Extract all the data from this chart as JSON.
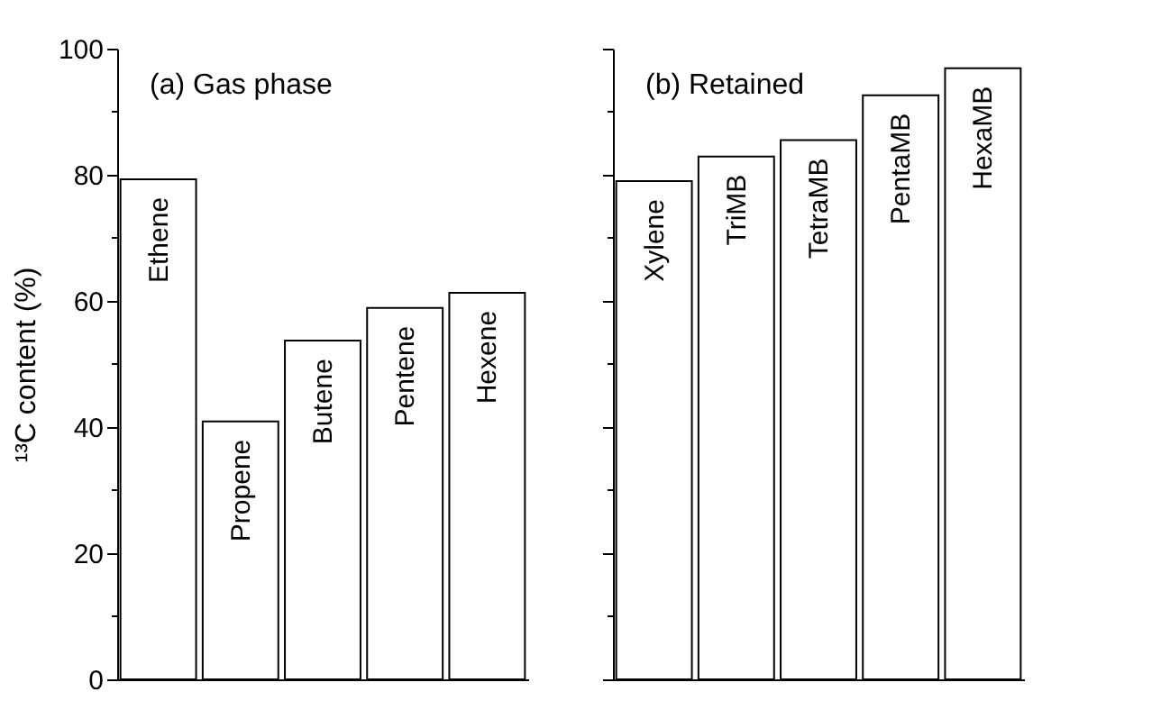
{
  "chart_data": [
    {
      "type": "bar",
      "title": "(a) Gas phase",
      "ylabel": "¹³C content (%)",
      "categories": [
        "Ethene",
        "Propene",
        "Butene",
        "Pentene",
        "Hexene"
      ],
      "values": [
        79.3,
        40.9,
        53.7,
        58.9,
        61.3
      ],
      "color": "#ffffff",
      "ylim": [
        0,
        100
      ],
      "yticks": [
        0,
        {
          "value": 10,
          "label": null
        },
        20,
        {
          "value": 30,
          "label": null
        },
        40,
        {
          "value": 50,
          "label": null
        },
        60,
        {
          "value": 70,
          "label": null
        },
        80,
        {
          "value": 90,
          "label": null
        },
        100
      ],
      "tick_labels": "y",
      "grid": false
    },
    {
      "type": "bar",
      "title": "(b) Retained",
      "categories": [
        "Xylene",
        "TriMB",
        "TetraMB",
        "PentaMB",
        "HexaMB"
      ],
      "values": [
        79.0,
        82.9,
        85.5,
        92.6,
        96.9
      ],
      "color": "#ffffff",
      "ylim": [
        0,
        100
      ],
      "yticks": [
        0,
        {
          "value": 10,
          "label": null
        },
        20,
        {
          "value": 30,
          "label": null
        },
        40,
        {
          "value": 50,
          "label": null
        },
        60,
        {
          "value": 70,
          "label": null
        },
        80,
        {
          "value": 90,
          "label": null
        },
        100
      ],
      "tick_labels": false,
      "grid": false
    }
  ]
}
